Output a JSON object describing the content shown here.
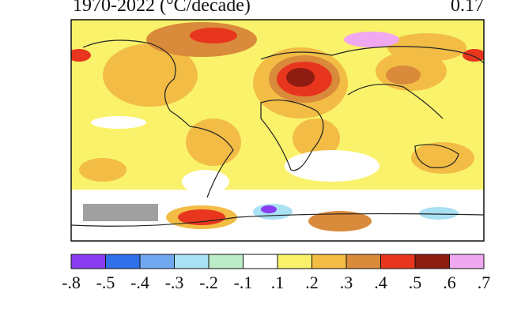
{
  "header": {
    "title": "1970-2022 (°C/decade)",
    "global_mean": "0.17"
  },
  "legend": {
    "labels": [
      "-.8",
      "-.5",
      "-.4",
      "-.3",
      "-.2",
      "-.1",
      ".1",
      ".2",
      ".3",
      ".4",
      ".5",
      ".6",
      ".7"
    ],
    "colors": [
      "#8a3cf0",
      "#3070e8",
      "#70a8f0",
      "#a8e0f4",
      "#bcecc8",
      "#ffffff",
      "#f9f26a",
      "#f2bc45",
      "#d98a3a",
      "#e8361e",
      "#8e1c10",
      "#f0a8f0"
    ]
  }
}
